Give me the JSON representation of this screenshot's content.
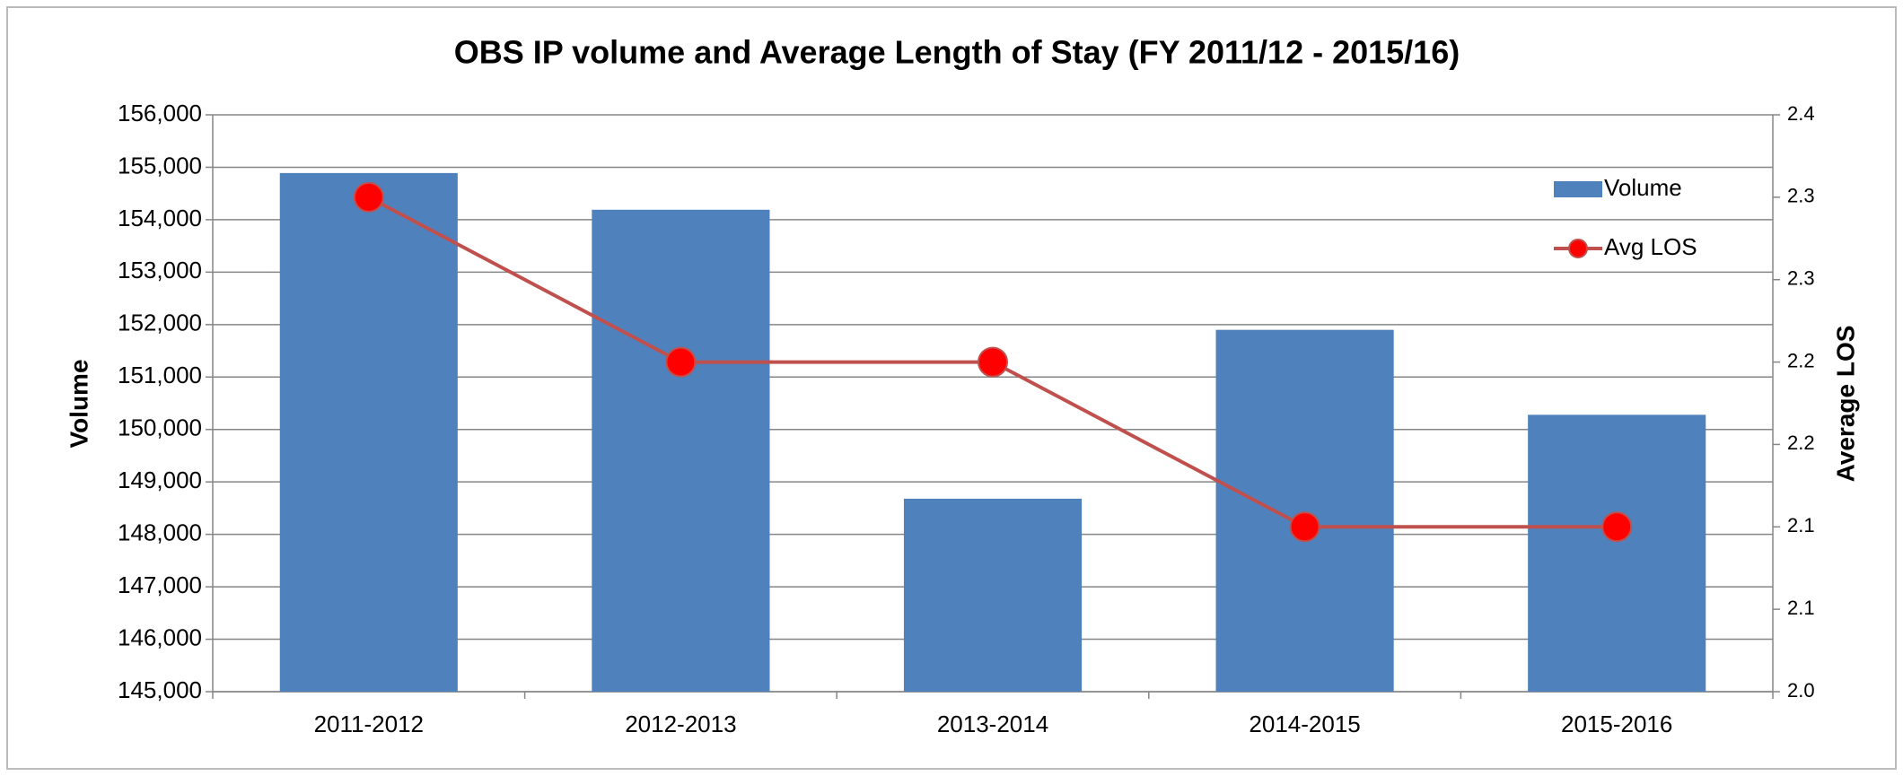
{
  "chart_data": {
    "type": "bar-line",
    "title": "OBS IP volume and Average Length of Stay (FY 2011/12 - 2015/16)",
    "ylabel": "Volume",
    "y2label": "Average LOS",
    "categories": [
      "2011-2012",
      "2012-2013",
      "2013-2014",
      "2014-2015",
      "2015-2016"
    ],
    "series": [
      {
        "name": "Volume",
        "type": "bar",
        "color": "#4f81bd",
        "values": [
          154890,
          154190,
          148680,
          151900,
          150280
        ]
      },
      {
        "name": "Avg LOS",
        "type": "line",
        "axis": "y2",
        "color": "#c0504d",
        "marker_color": "#ff0000",
        "values": [
          2.3,
          2.2,
          2.2,
          2.1,
          2.1
        ]
      }
    ],
    "ylim": [
      145000,
      156000
    ],
    "yticks": [
      {
        "value": 145000,
        "label": "145,000"
      },
      {
        "value": 146000,
        "label": "146,000"
      },
      {
        "value": 147000,
        "label": "147,000"
      },
      {
        "value": 148000,
        "label": "148,000"
      },
      {
        "value": 149000,
        "label": "149,000"
      },
      {
        "value": 150000,
        "label": "150,000"
      },
      {
        "value": 151000,
        "label": "151,000"
      },
      {
        "value": 152000,
        "label": "152,000"
      },
      {
        "value": 153000,
        "label": "153,000"
      },
      {
        "value": 154000,
        "label": "154,000"
      },
      {
        "value": 155000,
        "label": "155,000"
      },
      {
        "value": 156000,
        "label": "156,000"
      }
    ],
    "y2lim": [
      2.0,
      2.35
    ],
    "y2ticks": [
      {
        "value": 2.0,
        "label": "2.0"
      },
      {
        "value": 2.05,
        "label": "2.1"
      },
      {
        "value": 2.1,
        "label": "2.1"
      },
      {
        "value": 2.15,
        "label": "2.2"
      },
      {
        "value": 2.2,
        "label": "2.2"
      },
      {
        "value": 2.25,
        "label": "2.3"
      },
      {
        "value": 2.3,
        "label": "2.3"
      },
      {
        "value": 2.35,
        "label": "2.4"
      }
    ],
    "grid": true,
    "legend": "upper right"
  }
}
